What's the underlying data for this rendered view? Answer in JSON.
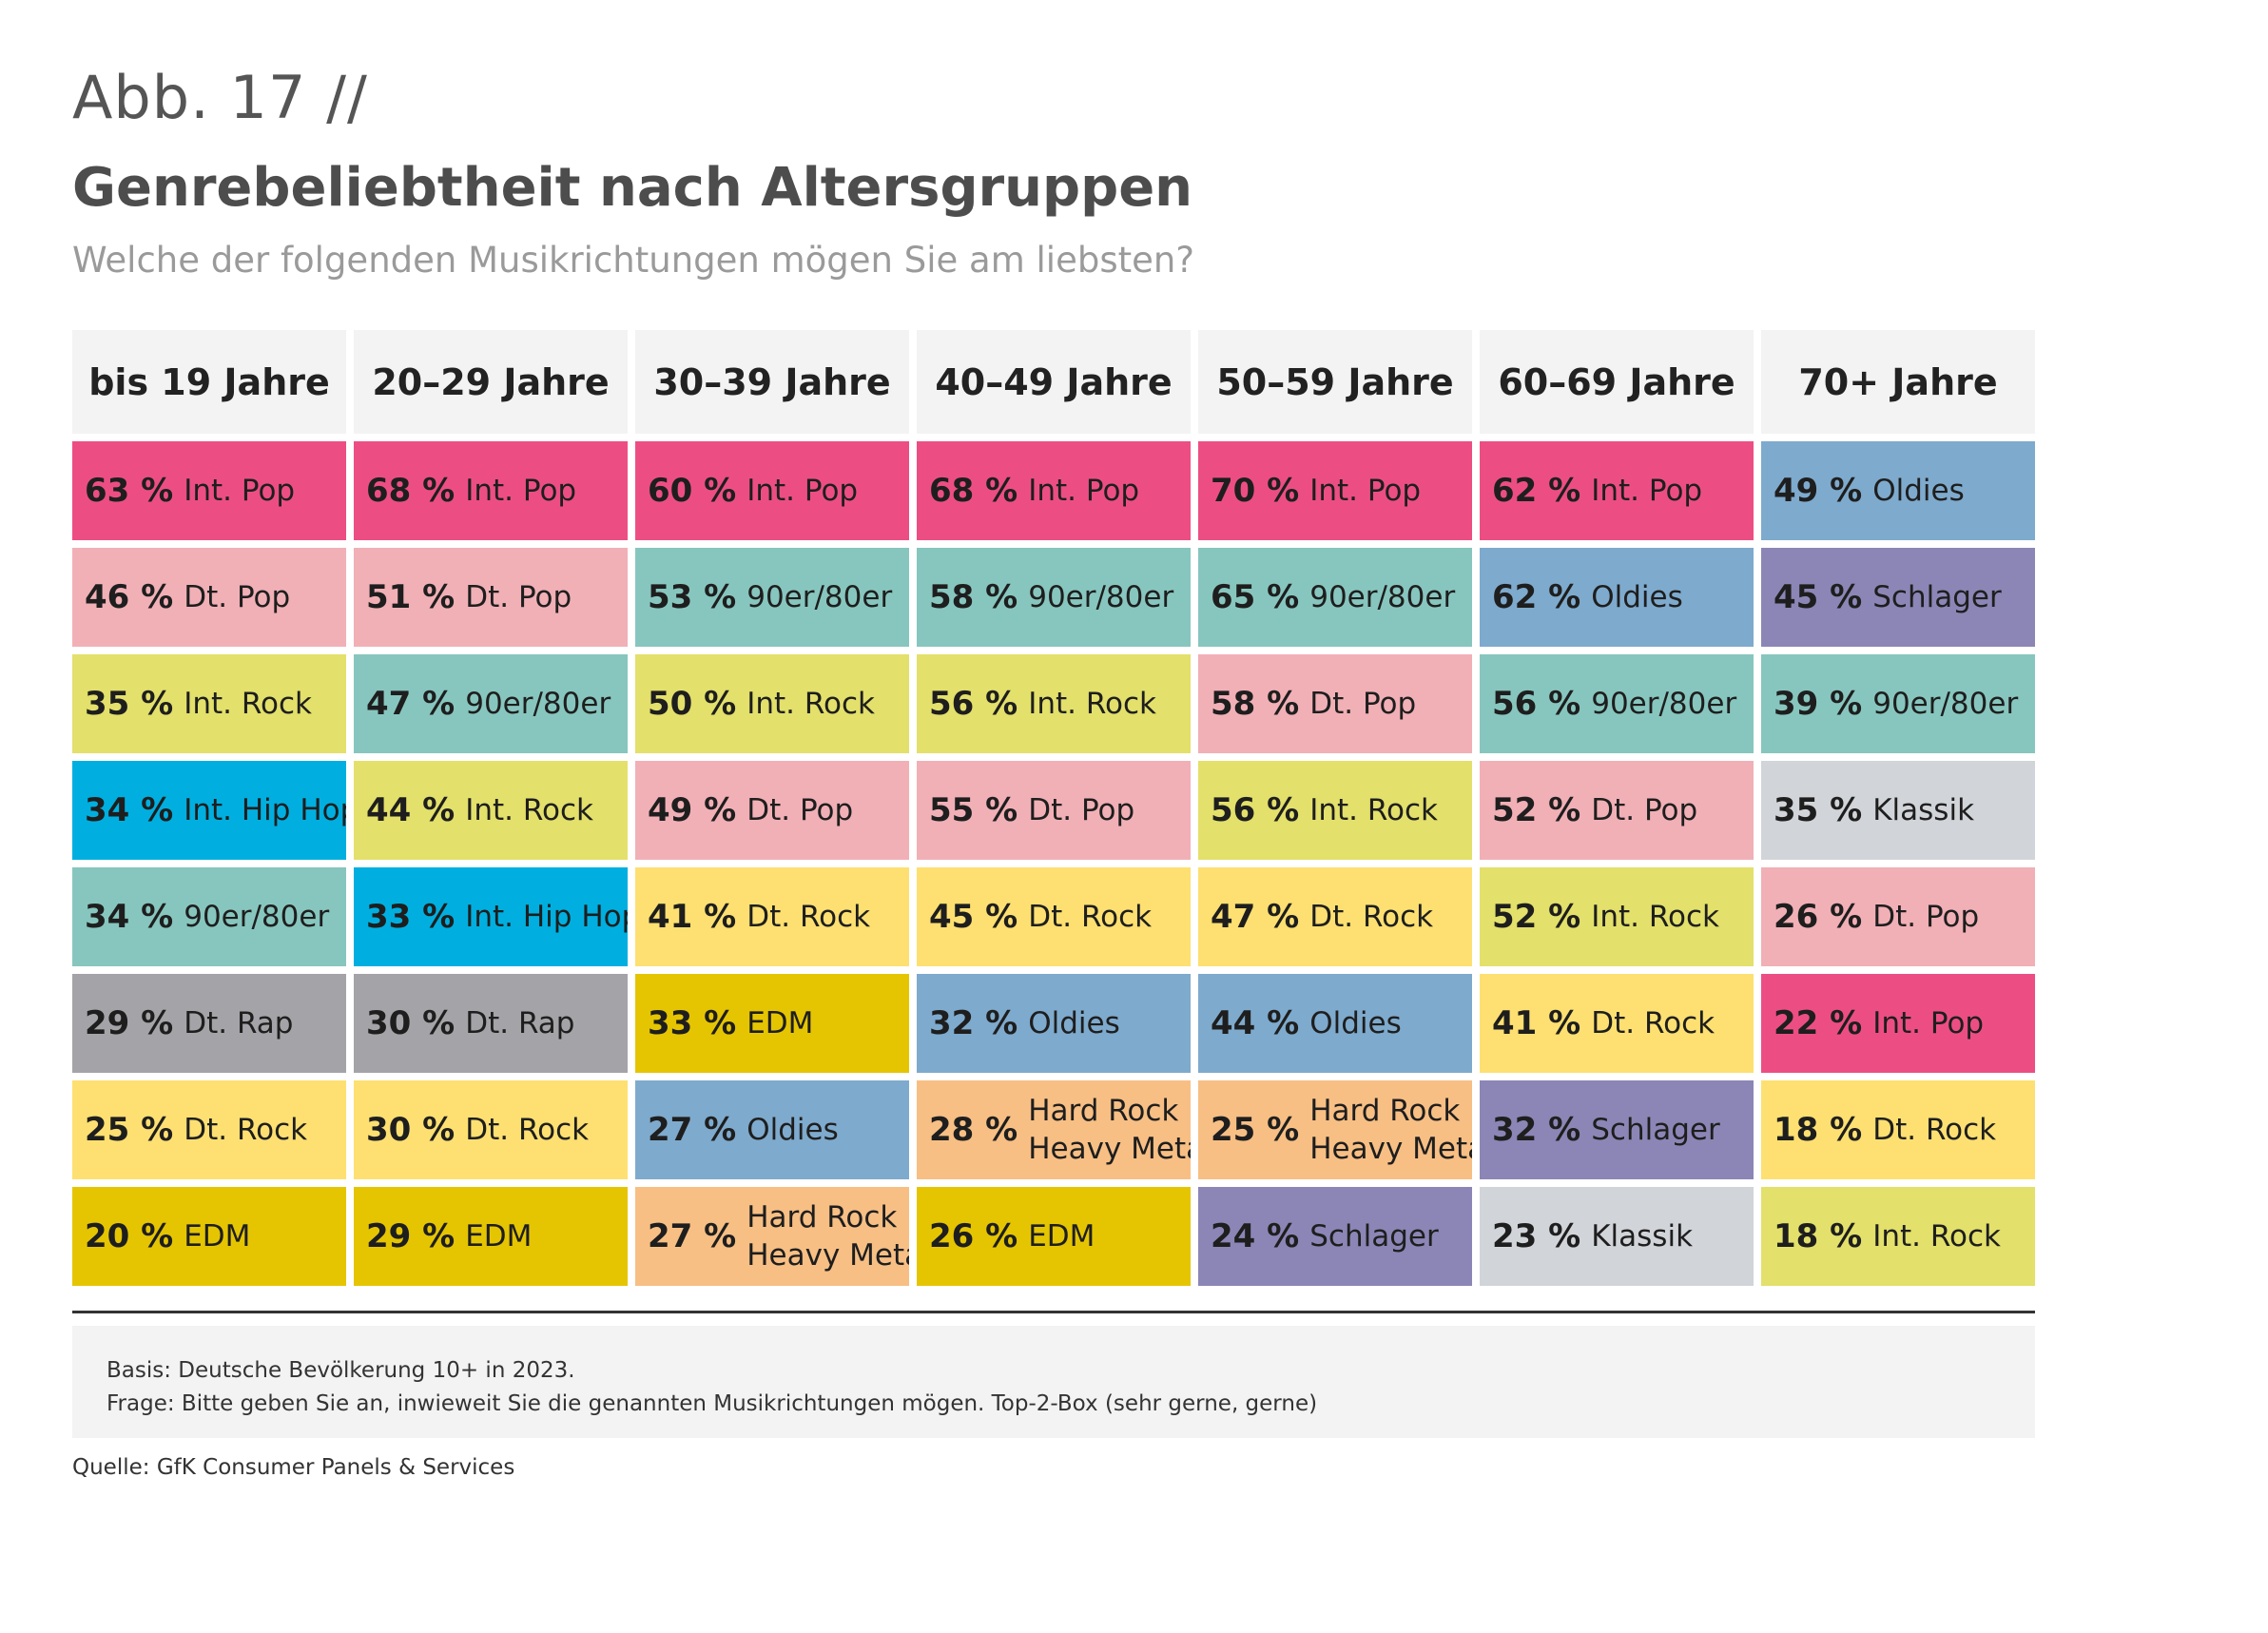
{
  "fig_label": "Abb. 17 //",
  "title": "Genrebeliebtheit nach Altersgruppen",
  "subtitle": "Welche der folgenden Musikrichtungen mögen Sie am liebsten?",
  "colors": {
    "Int. Pop": "#ec4e84",
    "Dt. Pop": "#f1b0b6",
    "Int. Rock": "#e3e06b",
    "Int. Hip Hop": "#00afdf",
    "90er/80er": "#87c6be",
    "Dt. Rap": "#a4a4a8",
    "Dt. Rock": "#fde071",
    "EDM": "#e5c502",
    "Oldies": "#7eaacd",
    "Hard Rock Heavy Metal": "#f7bf84",
    "Schlager": "#8b86b6",
    "Klassik": "#d1d4d8"
  },
  "chart_data": {
    "type": "table",
    "columns": [
      "bis 19 Jahre",
      "20–29 Jahre",
      "30–39 Jahre",
      "40–49 Jahre",
      "50–59 Jahre",
      "60–69 Jahre",
      "70+ Jahre"
    ],
    "unit": "%",
    "rankings": [
      [
        {
          "pct": "63 %",
          "genre": "Int. Pop",
          "value": 63
        },
        {
          "pct": "46 %",
          "genre": "Dt. Pop",
          "value": 46
        },
        {
          "pct": "35 %",
          "genre": "Int. Rock",
          "value": 35
        },
        {
          "pct": "34 %",
          "genre": "Int. Hip Hop",
          "value": 34
        },
        {
          "pct": "34 %",
          "genre": "90er/80er",
          "value": 34
        },
        {
          "pct": "29 %",
          "genre": "Dt. Rap",
          "value": 29
        },
        {
          "pct": "25 %",
          "genre": "Dt. Rock",
          "value": 25
        },
        {
          "pct": "20 %",
          "genre": "EDM",
          "value": 20
        }
      ],
      [
        {
          "pct": "68 %",
          "genre": "Int. Pop",
          "value": 68
        },
        {
          "pct": "51 %",
          "genre": "Dt. Pop",
          "value": 51
        },
        {
          "pct": "47 %",
          "genre": "90er/80er",
          "value": 47
        },
        {
          "pct": "44 %",
          "genre": "Int. Rock",
          "value": 44
        },
        {
          "pct": "33 %",
          "genre": "Int. Hip Hop",
          "value": 33
        },
        {
          "pct": "30 %",
          "genre": "Dt. Rap",
          "value": 30
        },
        {
          "pct": "30 %",
          "genre": "Dt. Rock",
          "value": 30
        },
        {
          "pct": "29 %",
          "genre": "EDM",
          "value": 29
        }
      ],
      [
        {
          "pct": "60 %",
          "genre": "Int. Pop",
          "value": 60
        },
        {
          "pct": "53 %",
          "genre": "90er/80er",
          "value": 53
        },
        {
          "pct": "50 %",
          "genre": "Int. Rock",
          "value": 50
        },
        {
          "pct": "49 %",
          "genre": "Dt. Pop",
          "value": 49
        },
        {
          "pct": "41 %",
          "genre": "Dt. Rock",
          "value": 41
        },
        {
          "pct": "33 %",
          "genre": "EDM",
          "value": 33
        },
        {
          "pct": "27 %",
          "genre": "Oldies",
          "value": 27
        },
        {
          "pct": "27 %",
          "genre": "Hard Rock Heavy Metal",
          "genre_lines": [
            "Hard Rock",
            "Heavy Metal"
          ],
          "value": 27
        }
      ],
      [
        {
          "pct": "68 %",
          "genre": "Int. Pop",
          "value": 68
        },
        {
          "pct": "58 %",
          "genre": "90er/80er",
          "value": 58
        },
        {
          "pct": "56 %",
          "genre": "Int. Rock",
          "value": 56
        },
        {
          "pct": "55 %",
          "genre": "Dt. Pop",
          "value": 55
        },
        {
          "pct": "45 %",
          "genre": "Dt. Rock",
          "value": 45
        },
        {
          "pct": "32 %",
          "genre": "Oldies",
          "value": 32
        },
        {
          "pct": "28 %",
          "genre": "Hard Rock Heavy Metal",
          "genre_lines": [
            "Hard Rock",
            "Heavy Metal"
          ],
          "value": 28
        },
        {
          "pct": "26 %",
          "genre": "EDM",
          "value": 26
        }
      ],
      [
        {
          "pct": "70 %",
          "genre": "Int. Pop",
          "value": 70
        },
        {
          "pct": "65 %",
          "genre": "90er/80er",
          "value": 65
        },
        {
          "pct": "58 %",
          "genre": "Dt. Pop",
          "value": 58
        },
        {
          "pct": "56 %",
          "genre": "Int. Rock",
          "value": 56
        },
        {
          "pct": "47 %",
          "genre": "Dt. Rock",
          "value": 47
        },
        {
          "pct": "44 %",
          "genre": "Oldies",
          "value": 44
        },
        {
          "pct": "25 %",
          "genre": "Hard Rock Heavy Metal",
          "genre_lines": [
            "Hard Rock",
            "Heavy Metal"
          ],
          "value": 25
        },
        {
          "pct": "24 %",
          "genre": "Schlager",
          "value": 24
        }
      ],
      [
        {
          "pct": "62 %",
          "genre": "Int. Pop",
          "value": 62
        },
        {
          "pct": "62 %",
          "genre": "Oldies",
          "value": 62
        },
        {
          "pct": "56 %",
          "genre": "90er/80er",
          "value": 56
        },
        {
          "pct": "52 %",
          "genre": "Dt. Pop",
          "value": 52
        },
        {
          "pct": "52 %",
          "genre": "Int. Rock",
          "value": 52
        },
        {
          "pct": "41 %",
          "genre": "Dt. Rock",
          "value": 41
        },
        {
          "pct": "32 %",
          "genre": "Schlager",
          "value": 32
        },
        {
          "pct": "23 %",
          "genre": "Klassik",
          "value": 23
        }
      ],
      [
        {
          "pct": "49 %",
          "genre": "Oldies",
          "value": 49
        },
        {
          "pct": "45 %",
          "genre": "Schlager",
          "value": 45
        },
        {
          "pct": "39 %",
          "genre": "90er/80er",
          "value": 39
        },
        {
          "pct": "35 %",
          "genre": "Klassik",
          "value": 35
        },
        {
          "pct": "26 %",
          "genre": "Dt. Pop",
          "value": 26
        },
        {
          "pct": "22 %",
          "genre": "Int. Pop",
          "value": 22
        },
        {
          "pct": "18 %",
          "genre": "Dt. Rock",
          "value": 18
        },
        {
          "pct": "18 %",
          "genre": "Int. Rock",
          "value": 18
        }
      ]
    ]
  },
  "notes": {
    "basis": "Basis: Deutsche Bevölkerung 10+ in 2023.",
    "frage": "Frage: Bitte geben Sie an, inwieweit Sie die genannten Musikrichtungen mögen. Top-2-Box (sehr gerne, gerne)"
  },
  "source": "Quelle: GfK Consumer Panels & Services"
}
